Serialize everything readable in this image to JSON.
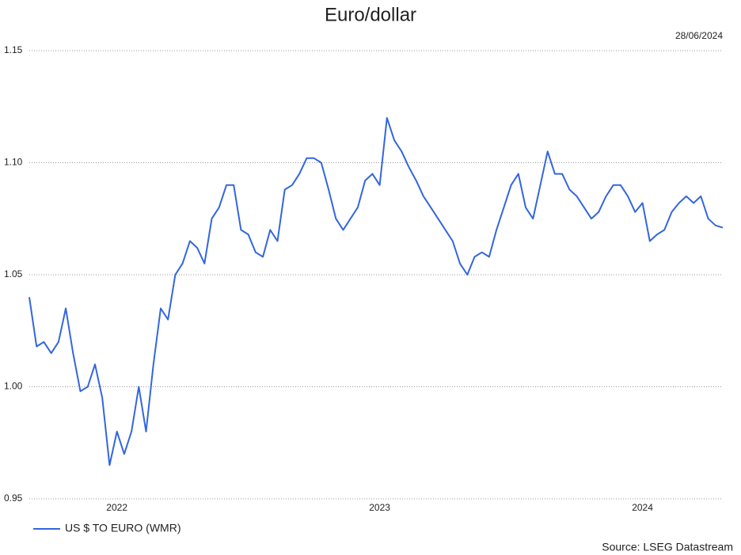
{
  "chart_data": {
    "type": "line",
    "title": "Euro/dollar",
    "annotation": "28/06/2024",
    "source": "Source: LSEG Datastream",
    "categories": [
      null,
      null,
      null,
      null,
      null,
      null,
      null,
      null,
      null,
      null,
      null,
      null,
      "2022",
      null,
      null,
      null,
      null,
      null,
      null,
      null,
      null,
      null,
      null,
      null,
      null,
      null,
      null,
      null,
      null,
      null,
      null,
      null,
      null,
      null,
      null,
      null,
      null,
      null,
      null,
      null,
      null,
      null,
      null,
      null,
      null,
      null,
      null,
      null,
      "2023",
      null,
      null,
      null,
      null,
      null,
      null,
      null,
      null,
      null,
      null,
      null,
      null,
      null,
      null,
      null,
      null,
      null,
      null,
      null,
      null,
      null,
      null,
      null,
      null,
      null,
      null,
      null,
      null,
      null,
      null,
      null,
      null,
      null,
      null,
      null,
      "2024",
      null,
      null,
      null,
      null,
      null,
      null,
      null,
      null,
      null,
      null,
      null
    ],
    "series": [
      {
        "name": "US $ TO EURO (WMR)",
        "color": "#3366dd",
        "values": [
          1.04,
          1.018,
          1.02,
          1.015,
          1.02,
          1.035,
          1.015,
          0.998,
          1.0,
          1.01,
          0.995,
          0.965,
          0.98,
          0.97,
          0.98,
          1.0,
          0.98,
          1.01,
          1.035,
          1.03,
          1.05,
          1.055,
          1.065,
          1.062,
          1.055,
          1.075,
          1.08,
          1.09,
          1.09,
          1.07,
          1.068,
          1.06,
          1.058,
          1.07,
          1.065,
          1.088,
          1.09,
          1.095,
          1.102,
          1.102,
          1.1,
          1.088,
          1.075,
          1.07,
          1.075,
          1.08,
          1.092,
          1.095,
          1.09,
          1.12,
          1.11,
          1.105,
          1.098,
          1.092,
          1.085,
          1.08,
          1.075,
          1.07,
          1.065,
          1.055,
          1.05,
          1.058,
          1.06,
          1.058,
          1.07,
          1.08,
          1.09,
          1.095,
          1.08,
          1.075,
          1.09,
          1.105,
          1.095,
          1.095,
          1.088,
          1.085,
          1.08,
          1.075,
          1.078,
          1.085,
          1.09,
          1.09,
          1.085,
          1.078,
          1.082,
          1.065,
          1.068,
          1.07,
          1.078,
          1.082,
          1.085,
          1.082,
          1.085,
          1.075,
          1.072,
          1.071
        ]
      }
    ],
    "ylim": [
      0.95,
      1.15
    ],
    "yticks": [
      0.95,
      {
        "value": 1,
        "label": "1.00"
      },
      1.05,
      {
        "value": 1.1,
        "label": "1.10"
      },
      1.15
    ],
    "grid": true,
    "legend": "bottom-left"
  }
}
